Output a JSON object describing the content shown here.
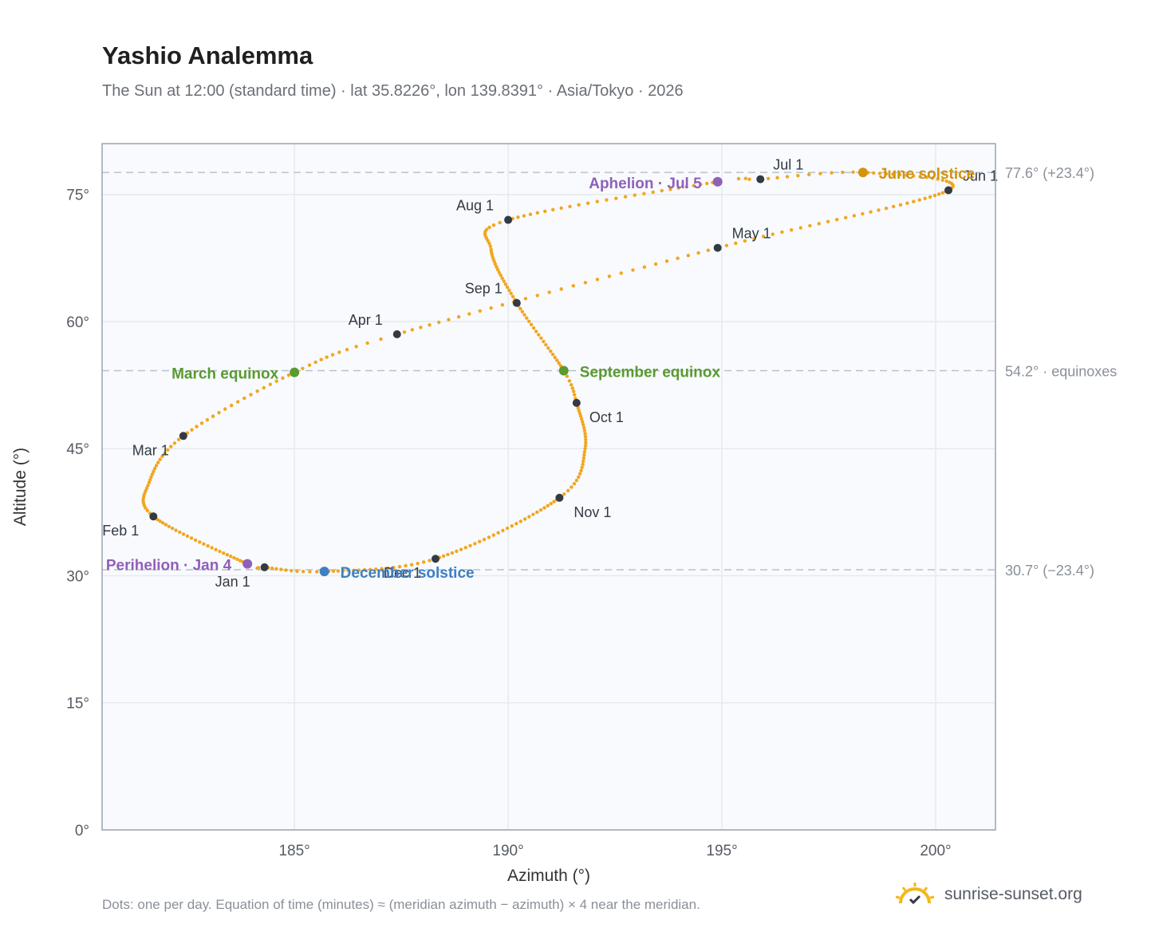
{
  "header": {
    "title": "Yashio Analemma",
    "subtitle": "The Sun at 12:00 (standard time) · lat 35.8226°, lon 139.8391° · Asia/Tokyo · 2026"
  },
  "footer": {
    "note": "Dots: one per day. Equation of time (minutes) ≈ (meridian azimuth − azimuth) × 4 near the meridian.",
    "brand": "sunrise-sunset.org"
  },
  "colors": {
    "path": "#f2a61f",
    "month_marker": "#333a44",
    "equinox": "#5a9a2f",
    "june_solstice": "#d4920e",
    "december_solstice": "#3e7fc1",
    "apsis": "#9060b8",
    "reference_line": "#b9c2cc",
    "plot_background": "#f8fafd",
    "grid": "#e6eaf0"
  },
  "chart_data": {
    "type": "scatter",
    "xlabel": "Azimuth (°)",
    "ylabel": "Altitude (°)",
    "xlim": [
      180.5,
      201.4
    ],
    "ylim": [
      0,
      81
    ],
    "xticks": [
      185,
      190,
      195,
      200
    ],
    "yticks": [
      0,
      15,
      30,
      45,
      60,
      75
    ],
    "xtick_labels": [
      "185°",
      "190°",
      "195°",
      "200°"
    ],
    "ytick_labels": [
      "0°",
      "15°",
      "30°",
      "45°",
      "60°",
      "75°"
    ],
    "grid": true,
    "path_key_points": [
      {
        "doy": 1,
        "az": 184.3,
        "alt": 31.0
      },
      {
        "doy": 4,
        "az": 183.9,
        "alt": 31.4
      },
      {
        "doy": 32,
        "az": 181.7,
        "alt": 37.0
      },
      {
        "doy": 45,
        "az": 181.6,
        "alt": 41.0
      },
      {
        "doy": 60,
        "az": 182.4,
        "alt": 46.5
      },
      {
        "doy": 79,
        "az": 185.0,
        "alt": 54.0
      },
      {
        "doy": 91,
        "az": 187.4,
        "alt": 58.5
      },
      {
        "doy": 121,
        "az": 194.9,
        "alt": 68.7
      },
      {
        "doy": 152,
        "az": 200.3,
        "alt": 75.5
      },
      {
        "doy": 172,
        "az": 198.3,
        "alt": 77.6
      },
      {
        "doy": 182,
        "az": 195.9,
        "alt": 76.8
      },
      {
        "doy": 186,
        "az": 194.9,
        "alt": 76.5
      },
      {
        "doy": 213,
        "az": 190.0,
        "alt": 72.0
      },
      {
        "doy": 225,
        "az": 189.6,
        "alt": 68.5
      },
      {
        "doy": 244,
        "az": 190.2,
        "alt": 62.2
      },
      {
        "doy": 266,
        "az": 191.3,
        "alt": 54.2
      },
      {
        "doy": 274,
        "az": 191.6,
        "alt": 50.4
      },
      {
        "doy": 290,
        "az": 191.8,
        "alt": 45.0
      },
      {
        "doy": 305,
        "az": 191.2,
        "alt": 39.2
      },
      {
        "doy": 335,
        "az": 188.3,
        "alt": 32.0
      },
      {
        "doy": 355,
        "az": 185.7,
        "alt": 30.5
      },
      {
        "doy": 366,
        "az": 184.3,
        "alt": 31.0
      }
    ],
    "month_markers": [
      {
        "label": "Jan 1",
        "az": 184.3,
        "alt": 31.0,
        "anchor": "end",
        "dx": -18,
        "dy": 24
      },
      {
        "label": "Feb 1",
        "az": 181.7,
        "alt": 37.0,
        "anchor": "end",
        "dx": -18,
        "dy": 24
      },
      {
        "label": "Mar 1",
        "az": 182.4,
        "alt": 46.5,
        "anchor": "end",
        "dx": -18,
        "dy": 24
      },
      {
        "label": "Apr 1",
        "az": 187.4,
        "alt": 58.5,
        "anchor": "end",
        "dx": -18,
        "dy": -12
      },
      {
        "label": "May 1",
        "az": 194.9,
        "alt": 68.7,
        "anchor": "start",
        "dx": 18,
        "dy": -12
      },
      {
        "label": "Jun 1",
        "az": 200.3,
        "alt": 75.5,
        "anchor": "start",
        "dx": 18,
        "dy": -12
      },
      {
        "label": "Jul 1",
        "az": 195.9,
        "alt": 76.8,
        "anchor": "start",
        "dx": 16,
        "dy": -12
      },
      {
        "label": "Aug 1",
        "az": 190.0,
        "alt": 72.0,
        "anchor": "end",
        "dx": -18,
        "dy": -12
      },
      {
        "label": "Sep 1",
        "az": 190.2,
        "alt": 62.2,
        "anchor": "end",
        "dx": -18,
        "dy": -12
      },
      {
        "label": "Oct 1",
        "az": 191.6,
        "alt": 50.4,
        "anchor": "start",
        "dx": 16,
        "dy": 24
      },
      {
        "label": "Nov 1",
        "az": 191.2,
        "alt": 39.2,
        "anchor": "start",
        "dx": 18,
        "dy": 24
      },
      {
        "label": "Dec 1",
        "az": 188.3,
        "alt": 32.0,
        "anchor": "end",
        "dx": -18,
        "dy": 24
      }
    ],
    "events": [
      {
        "label": "March equinox",
        "az": 185.0,
        "alt": 54.0,
        "color_key": "equinox",
        "anchor": "end",
        "dx": -20,
        "dy": 8
      },
      {
        "label": "September equinox",
        "az": 191.3,
        "alt": 54.2,
        "color_key": "equinox",
        "anchor": "start",
        "dx": 20,
        "dy": 8
      },
      {
        "label": "June solstice",
        "az": 198.3,
        "alt": 77.6,
        "color_key": "june_solstice",
        "anchor": "start",
        "dx": 20,
        "dy": 8
      },
      {
        "label": "December solstice",
        "az": 185.7,
        "alt": 30.5,
        "color_key": "december_solstice",
        "anchor": "start",
        "dx": 20,
        "dy": 8
      },
      {
        "label": "Perihelion · Jan 4",
        "az": 183.9,
        "alt": 31.4,
        "color_key": "apsis",
        "anchor": "end",
        "dx": -20,
        "dy": 8
      },
      {
        "label": "Aphelion · Jul 5",
        "az": 194.9,
        "alt": 76.5,
        "color_key": "apsis",
        "anchor": "end",
        "dx": -20,
        "dy": 8
      }
    ],
    "reference_lines": [
      {
        "alt": 77.6,
        "label": "77.6° (+23.4°)"
      },
      {
        "alt": 54.2,
        "label": "54.2° · equinoxes"
      },
      {
        "alt": 30.7,
        "label": "30.7° (−23.4°)"
      }
    ]
  }
}
